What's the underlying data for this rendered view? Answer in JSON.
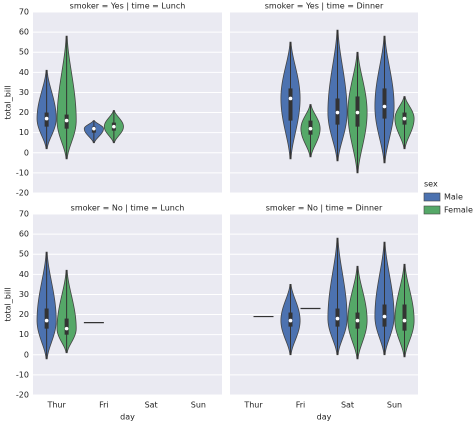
{
  "chart_data": {
    "type": "violin",
    "xlabel": "day",
    "ylabel": "total_bill",
    "legend_title": "sex",
    "categories": [
      "Thur",
      "Fri",
      "Sat",
      "Sun"
    ],
    "series": [
      {
        "name": "Male",
        "color": "#4c72b0"
      },
      {
        "name": "Female",
        "color": "#55a868"
      }
    ],
    "ylim": [
      -20,
      70
    ],
    "yticks": [
      -20,
      -10,
      0,
      10,
      20,
      30,
      40,
      50,
      60,
      70
    ],
    "grid": true,
    "facets": [
      {
        "title": "smoker = Yes | time = Lunch",
        "violins": [
          [
            {
              "min": 2,
              "q1": 13,
              "median": 17,
              "q3": 20,
              "max": 41
            },
            {
              "min": 5,
              "q1": 10,
              "median": 12,
              "q3": 13,
              "max": 16
            },
            null,
            null
          ],
          [
            {
              "min": -3,
              "q1": 12,
              "median": 16,
              "q3": 19,
              "max": 58
            },
            {
              "min": 5,
              "q1": 11,
              "median": 13,
              "q3": 15,
              "max": 21
            },
            null,
            null
          ]
        ]
      },
      {
        "title": "smoker = Yes | time = Dinner",
        "violins": [
          [
            null,
            {
              "min": -3,
              "q1": 16,
              "median": 27,
              "q3": 32,
              "max": 55
            },
            {
              "min": -4,
              "q1": 14,
              "median": 20,
              "q3": 27,
              "max": 61
            },
            {
              "min": -5,
              "q1": 17,
              "median": 23,
              "q3": 32,
              "max": 58
            }
          ],
          [
            null,
            {
              "min": -2,
              "q1": 9,
              "median": 12,
              "q3": 16,
              "max": 24
            },
            {
              "min": -10,
              "q1": 13,
              "median": 20,
              "q3": 28,
              "max": 50
            },
            {
              "min": 2,
              "q1": 14,
              "median": 17,
              "q3": 20,
              "max": 28
            }
          ]
        ]
      },
      {
        "title": "smoker = No | time = Lunch",
        "violins": [
          [
            {
              "min": -2,
              "q1": 13,
              "median": 17,
              "q3": 23,
              "max": 51
            },
            {
              "value": 16
            },
            null,
            null
          ],
          [
            {
              "min": 1,
              "q1": 10,
              "median": 13,
              "q3": 18,
              "max": 42
            },
            null,
            null,
            null
          ]
        ]
      },
      {
        "title": "smoker = No | time = Dinner",
        "violins": [
          [
            null,
            {
              "min": 0,
              "q1": 14,
              "median": 17,
              "q3": 21,
              "max": 35
            },
            {
              "min": 0,
              "q1": 14,
              "median": 18,
              "q3": 23,
              "max": 58
            },
            {
              "min": 0,
              "q1": 14,
              "median": 19,
              "q3": 25,
              "max": 56
            }
          ],
          [
            {
              "value": 19
            },
            {
              "value": 23
            },
            {
              "min": -2,
              "q1": 13,
              "median": 17,
              "q3": 21,
              "max": 44
            },
            {
              "min": -1,
              "q1": 12,
              "median": 17,
              "q3": 25,
              "max": 45
            }
          ]
        ]
      }
    ]
  }
}
